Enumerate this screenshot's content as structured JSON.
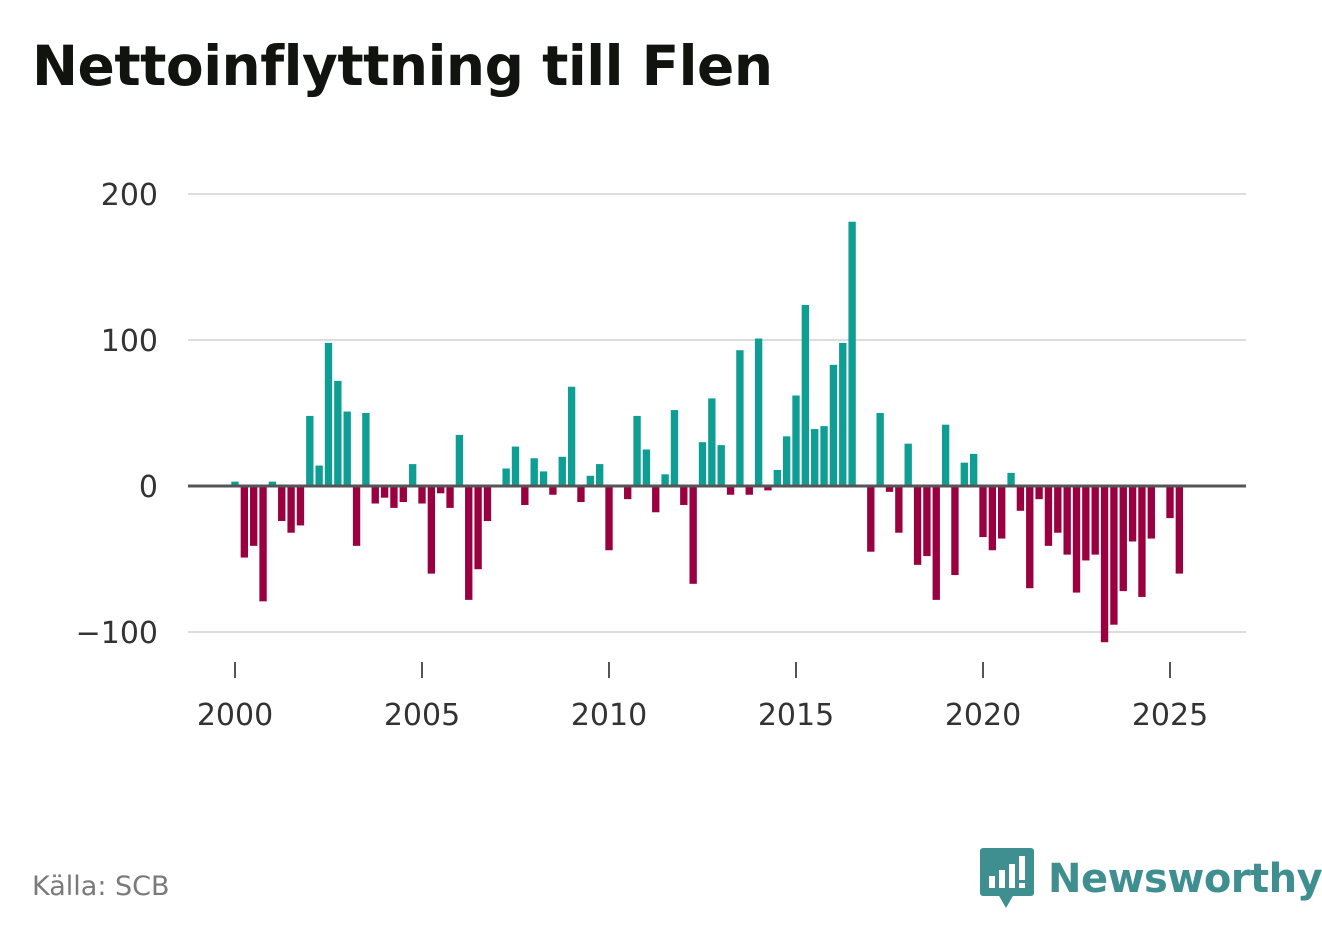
{
  "title": "Nettoinflyttning till Flen",
  "source": "Källa: SCB",
  "brand": "Newsworthy",
  "colors": {
    "positive": "#0e9e94",
    "negative": "#9a0040",
    "grid": "#dddddd",
    "zero": "#555555",
    "brand": "#3f8f91"
  },
  "chart_data": {
    "type": "bar",
    "title": "Nettoinflyttning till Flen",
    "xlabel": "",
    "ylabel": "",
    "frequency": "quarterly",
    "start": "2000 Q1",
    "ylim": [
      -115,
      200
    ],
    "yticks": [
      -100,
      0,
      100,
      200
    ],
    "ytick_labels": [
      "−100",
      "0",
      "100",
      "200"
    ],
    "xticks": [
      2000,
      2005,
      2010,
      2015,
      2020,
      2025
    ],
    "xtick_labels": [
      "2000",
      "2005",
      "2010",
      "2015",
      "2020",
      "2025"
    ],
    "values": [
      3,
      -49,
      -41,
      -79,
      3,
      -24,
      -32,
      -27,
      48,
      14,
      98,
      72,
      51,
      -41,
      50,
      -12,
      -8,
      -15,
      -11,
      15,
      -12,
      -60,
      -5,
      -15,
      35,
      -78,
      -57,
      -24,
      1,
      12,
      27,
      -13,
      19,
      10,
      -6,
      20,
      68,
      -11,
      7,
      15,
      -44,
      0,
      -9,
      48,
      25,
      -18,
      8,
      52,
      -13,
      -67,
      30,
      60,
      28,
      -6,
      93,
      -6,
      101,
      -3,
      11,
      34,
      62,
      124,
      39,
      41,
      83,
      98,
      181,
      0,
      -45,
      50,
      -4,
      -32,
      29,
      -54,
      -48,
      -78,
      42,
      -61,
      16,
      22,
      -35,
      -44,
      -36,
      9,
      -17,
      -70,
      -9,
      -41,
      -32,
      -47,
      -73,
      -51,
      -47,
      -107,
      -95,
      -72,
      -38,
      -76,
      -36,
      0,
      -22,
      -60
    ]
  }
}
